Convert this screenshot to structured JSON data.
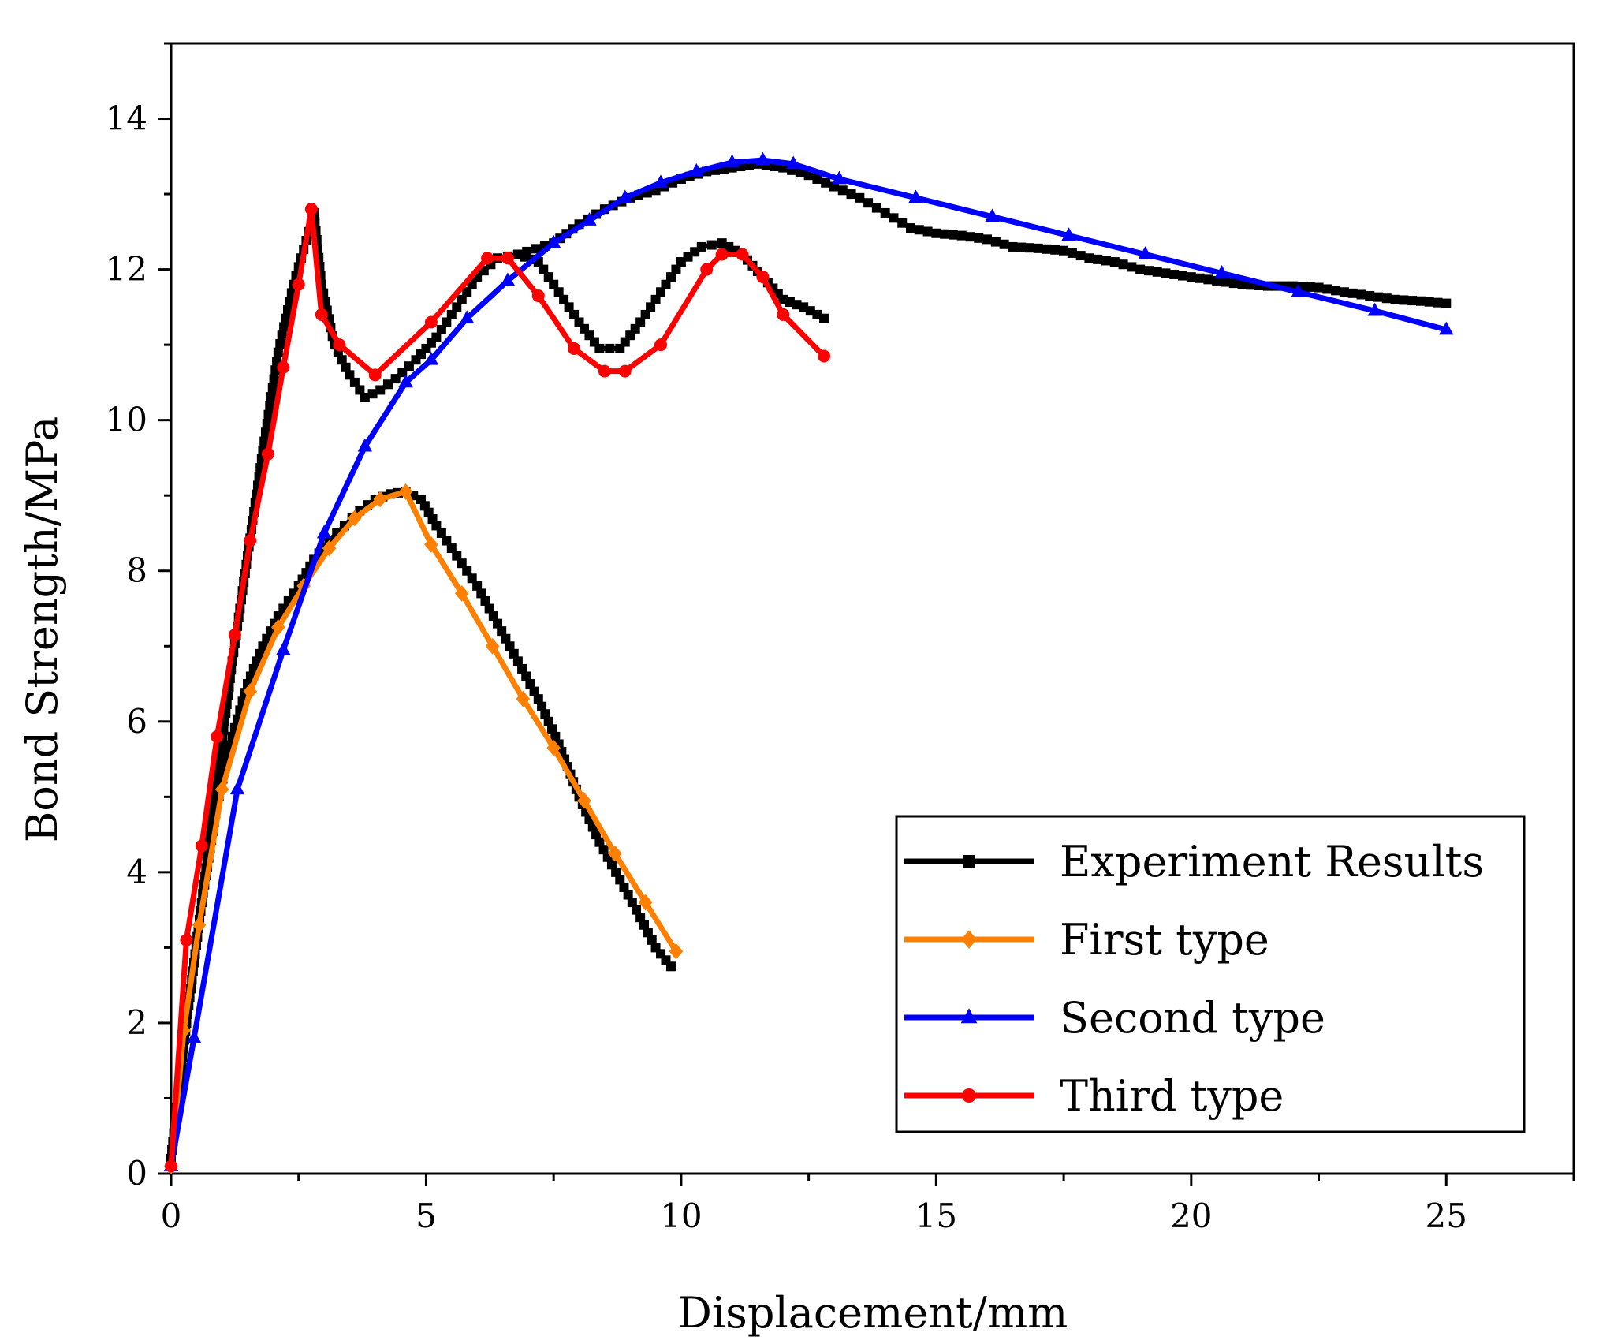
{
  "chart_data": {
    "type": "line",
    "title": "",
    "xlabel": "Displacement/mm",
    "ylabel": "Bond Strength/MPa",
    "xlim": [
      0,
      27.5
    ],
    "ylim": [
      0,
      15
    ],
    "xticks": [
      0,
      5,
      10,
      15,
      20,
      25
    ],
    "yticks": [
      0,
      2,
      4,
      6,
      8,
      10,
      12,
      14
    ],
    "legend_position": "bottom-right",
    "series": [
      {
        "name": "Experiment Results",
        "color": "#000000",
        "marker": "square",
        "segments": [
          [
            [
              0,
              0.2
            ],
            [
              0.3,
              2.0
            ],
            [
              0.6,
              3.6
            ],
            [
              0.9,
              4.9
            ],
            [
              1.2,
              5.8
            ],
            [
              1.5,
              6.5
            ],
            [
              1.8,
              7.0
            ],
            [
              2.1,
              7.4
            ],
            [
              2.5,
              7.8
            ],
            [
              2.8,
              8.15
            ],
            [
              3.1,
              8.4
            ],
            [
              3.4,
              8.6
            ],
            [
              3.7,
              8.8
            ],
            [
              4.0,
              8.95
            ],
            [
              4.3,
              9.02
            ],
            [
              4.6,
              9.05
            ],
            [
              4.9,
              8.95
            ],
            [
              5.2,
              8.6
            ],
            [
              5.6,
              8.2
            ],
            [
              6.0,
              7.8
            ],
            [
              6.4,
              7.3
            ],
            [
              6.8,
              6.8
            ],
            [
              7.2,
              6.3
            ],
            [
              7.6,
              5.7
            ],
            [
              8.0,
              5.0
            ],
            [
              8.4,
              4.4
            ],
            [
              8.8,
              3.9
            ],
            [
              9.2,
              3.4
            ],
            [
              9.5,
              3.0
            ],
            [
              9.8,
              2.75
            ]
          ],
          [
            [
              0,
              0.2
            ],
            [
              0.3,
              2.0
            ],
            [
              0.6,
              3.6
            ],
            [
              0.9,
              5.2
            ],
            [
              1.2,
              6.8
            ],
            [
              1.5,
              8.2
            ],
            [
              1.8,
              9.6
            ],
            [
              2.1,
              10.9
            ],
            [
              2.4,
              11.8
            ],
            [
              2.7,
              12.5
            ],
            [
              2.8,
              12.75
            ],
            [
              2.95,
              11.8
            ],
            [
              3.2,
              11.0
            ],
            [
              3.5,
              10.6
            ],
            [
              3.8,
              10.3
            ],
            [
              4.1,
              10.4
            ],
            [
              4.4,
              10.55
            ],
            [
              4.8,
              10.8
            ],
            [
              5.2,
              11.1
            ],
            [
              5.6,
              11.5
            ],
            [
              6.0,
              11.9
            ],
            [
              6.4,
              12.15
            ],
            [
              6.8,
              12.2
            ],
            [
              7.2,
              12.1
            ],
            [
              7.6,
              11.7
            ],
            [
              8.0,
              11.3
            ],
            [
              8.4,
              10.95
            ],
            [
              8.8,
              10.95
            ],
            [
              9.2,
              11.3
            ],
            [
              9.6,
              11.7
            ],
            [
              10.0,
              12.1
            ],
            [
              10.4,
              12.3
            ],
            [
              10.8,
              12.35
            ],
            [
              11.2,
              12.2
            ],
            [
              11.6,
              11.9
            ],
            [
              12.0,
              11.6
            ],
            [
              12.4,
              11.5
            ],
            [
              12.8,
              11.35
            ]
          ],
          [
            [
              6.8,
              12.2
            ],
            [
              7.5,
              12.35
            ],
            [
              8.0,
              12.6
            ],
            [
              8.5,
              12.8
            ],
            [
              9.0,
              12.95
            ],
            [
              9.5,
              13.05
            ],
            [
              10.0,
              13.2
            ],
            [
              10.5,
              13.3
            ],
            [
              11.0,
              13.35
            ],
            [
              11.5,
              13.4
            ],
            [
              12.0,
              13.35
            ],
            [
              12.5,
              13.25
            ],
            [
              13.0,
              13.1
            ],
            [
              13.5,
              12.95
            ],
            [
              14.0,
              12.75
            ],
            [
              14.5,
              12.55
            ],
            [
              15.0,
              12.48
            ],
            [
              15.5,
              12.45
            ],
            [
              16.0,
              12.4
            ],
            [
              16.5,
              12.3
            ],
            [
              17.0,
              12.28
            ],
            [
              17.5,
              12.25
            ],
            [
              18.0,
              12.15
            ],
            [
              18.5,
              12.1
            ],
            [
              19.0,
              12.0
            ],
            [
              19.5,
              11.95
            ],
            [
              20.0,
              11.9
            ],
            [
              20.5,
              11.85
            ],
            [
              21.0,
              11.8
            ],
            [
              21.5,
              11.78
            ],
            [
              22.0,
              11.78
            ],
            [
              22.5,
              11.76
            ],
            [
              23.0,
              11.7
            ],
            [
              23.5,
              11.65
            ],
            [
              24.0,
              11.6
            ],
            [
              24.5,
              11.58
            ],
            [
              25.0,
              11.55
            ]
          ]
        ]
      },
      {
        "name": "First type",
        "color": "#ff8000",
        "marker": "diamond",
        "points": [
          [
            0,
            0.1
          ],
          [
            0.25,
            1.9
          ],
          [
            0.55,
            3.3
          ],
          [
            1.0,
            5.1
          ],
          [
            1.55,
            6.4
          ],
          [
            2.1,
            7.25
          ],
          [
            2.6,
            7.8
          ],
          [
            3.1,
            8.3
          ],
          [
            3.6,
            8.7
          ],
          [
            4.1,
            8.95
          ],
          [
            4.6,
            9.05
          ],
          [
            5.1,
            8.35
          ],
          [
            5.7,
            7.7
          ],
          [
            6.3,
            7.0
          ],
          [
            6.9,
            6.3
          ],
          [
            7.5,
            5.65
          ],
          [
            8.1,
            4.95
          ],
          [
            8.7,
            4.25
          ],
          [
            9.3,
            3.6
          ],
          [
            9.9,
            2.95
          ]
        ]
      },
      {
        "name": "Second type",
        "color": "#0000ff",
        "marker": "triangle",
        "points": [
          [
            0,
            0.1
          ],
          [
            0.45,
            1.8
          ],
          [
            1.3,
            5.1
          ],
          [
            2.2,
            6.95
          ],
          [
            3.0,
            8.5
          ],
          [
            3.8,
            9.65
          ],
          [
            4.6,
            10.5
          ],
          [
            5.1,
            10.8
          ],
          [
            5.8,
            11.35
          ],
          [
            6.6,
            11.85
          ],
          [
            7.5,
            12.35
          ],
          [
            8.2,
            12.65
          ],
          [
            8.9,
            12.95
          ],
          [
            9.6,
            13.15
          ],
          [
            10.3,
            13.3
          ],
          [
            11.0,
            13.42
          ],
          [
            11.6,
            13.45
          ],
          [
            12.2,
            13.4
          ],
          [
            13.1,
            13.2
          ],
          [
            14.6,
            12.95
          ],
          [
            16.1,
            12.7
          ],
          [
            17.6,
            12.45
          ],
          [
            19.1,
            12.2
          ],
          [
            20.6,
            11.95
          ],
          [
            22.1,
            11.7
          ],
          [
            23.6,
            11.45
          ],
          [
            25.0,
            11.2
          ]
        ]
      },
      {
        "name": "Third type",
        "color": "#ff0000",
        "marker": "circle",
        "points": [
          [
            0,
            0.1
          ],
          [
            0.3,
            3.1
          ],
          [
            0.6,
            4.35
          ],
          [
            0.9,
            5.8
          ],
          [
            1.25,
            7.15
          ],
          [
            1.55,
            8.4
          ],
          [
            1.9,
            9.55
          ],
          [
            2.2,
            10.7
          ],
          [
            2.5,
            11.8
          ],
          [
            2.75,
            12.8
          ],
          [
            2.95,
            11.4
          ],
          [
            3.3,
            11.0
          ],
          [
            4.0,
            10.6
          ],
          [
            5.1,
            11.3
          ],
          [
            6.2,
            12.15
          ],
          [
            6.6,
            12.15
          ],
          [
            7.2,
            11.65
          ],
          [
            7.9,
            10.95
          ],
          [
            8.5,
            10.65
          ],
          [
            8.9,
            10.65
          ],
          [
            9.6,
            11.0
          ],
          [
            10.5,
            12.0
          ],
          [
            10.8,
            12.2
          ],
          [
            11.2,
            12.2
          ],
          [
            11.6,
            11.9
          ],
          [
            12.0,
            11.4
          ],
          [
            12.8,
            10.85
          ]
        ]
      }
    ]
  }
}
